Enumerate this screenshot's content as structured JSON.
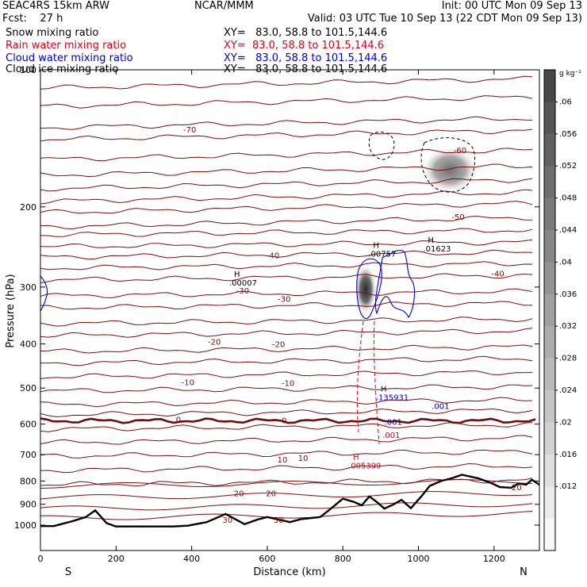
{
  "header": {
    "line1_left": "SEAC4RS 15km ARW",
    "line1_center": "NCAR/MMM",
    "line1_right": "Init: 00 UTC Mon 09 Sep 13",
    "line2_left": "Fcst:    27 h",
    "line2_right": "Valid: 03 UTC Tue 10 Sep 13 (22 CDT Mon 09 Sep 13)",
    "fields": [
      {
        "name": "Snow mixing ratio",
        "xy": "XY=   83.0, 58.8 to 101.5,144.6",
        "color": "#000000"
      },
      {
        "name": "Rain water mixing ratio",
        "xy": "XY=  83.0, 58.8 to 101.5,144.6",
        "color": "#e0001b"
      },
      {
        "name": "Cloud water mixing ratio",
        "xy": "XY=   83.0, 58.8 to 101.5,144.6",
        "color": "#0000cc"
      },
      {
        "name": "Cloud ice mixing ratio",
        "xy": "XY=   83.0, 58.8 to 101.5,144.6",
        "color": "#000000"
      }
    ]
  },
  "chart_data": {
    "type": "cross-section contour",
    "xlabel": "Distance (km)",
    "ylabel": "Pressure (hPa)",
    "xlim": [
      0,
      1320
    ],
    "ylim": [
      1050,
      100
    ],
    "y_scale": "log-pressure",
    "x_ticks": [
      0,
      200,
      400,
      600,
      800,
      1000,
      1200
    ],
    "y_ticks": [
      100,
      200,
      300,
      400,
      500,
      600,
      700,
      800,
      900,
      1000
    ],
    "x_end_labels": {
      "left": "S",
      "right": "N"
    },
    "temperature_contours_c": [
      {
        "label": "-70",
        "label_x": 395,
        "label_p": 135
      },
      {
        "label": "-60",
        "label_x": 1110,
        "label_p": 150
      },
      {
        "label": "-50",
        "label_x": 1105,
        "label_p": 210
      },
      {
        "label": "-40",
        "label_x": 615,
        "label_p": 255
      },
      {
        "label": "-40",
        "label_x": 1210,
        "label_p": 280
      },
      {
        "label": "-30",
        "label_x": 535,
        "label_p": 305
      },
      {
        "label": "-30",
        "label_x": 645,
        "label_p": 318
      },
      {
        "label": "-20",
        "label_x": 460,
        "label_p": 395
      },
      {
        "label": "-20",
        "label_x": 630,
        "label_p": 400
      },
      {
        "label": "-10",
        "label_x": 390,
        "label_p": 485
      },
      {
        "label": "-10",
        "label_x": 655,
        "label_p": 487
      },
      {
        "label": "0",
        "label_x": 365,
        "label_p": 585
      },
      {
        "label": "0",
        "label_x": 645,
        "label_p": 588
      },
      {
        "label": "10",
        "label_x": 640,
        "label_p": 717
      },
      {
        "label": "10",
        "label_x": 695,
        "label_p": 711
      },
      {
        "label": "20",
        "label_x": 525,
        "label_p": 850
      },
      {
        "label": "20",
        "label_x": 610,
        "label_p": 850
      },
      {
        "label": "20",
        "label_x": 1260,
        "label_p": 825
      },
      {
        "label": "30",
        "label_x": 495,
        "label_p": 972
      },
      {
        "label": "30",
        "label_x": 630,
        "label_p": 972
      }
    ],
    "maxima_labels": [
      {
        "text": "H",
        "value": ".00007",
        "x": 512,
        "p": 285,
        "color": "#000000"
      },
      {
        "text": "H",
        "value": ".00757",
        "x": 880,
        "p": 246,
        "color": "#000000"
      },
      {
        "text": "H",
        "value": ".01623",
        "x": 1025,
        "p": 240,
        "color": "#000000"
      },
      {
        "text": "H",
        "value": ".135931",
        "x": 900,
        "p": 509,
        "color": "#0000cc"
      },
      {
        "text": "H",
        "value": ".005399",
        "x": 827,
        "p": 718,
        "color": "#e0001b"
      }
    ],
    "contour_value_labels": [
      {
        "text": ".001",
        "x": 1035,
        "p": 547,
        "color": "#0000cc"
      },
      {
        "text": ".001",
        "x": 910,
        "p": 592,
        "color": "#0000cc"
      },
      {
        "text": ".001",
        "x": 905,
        "p": 633,
        "color": "#e0001b"
      }
    ],
    "terrain_pressure_hpa": [
      [
        0,
        1005
      ],
      [
        35,
        1005
      ],
      [
        85,
        980
      ],
      [
        120,
        960
      ],
      [
        145,
        928
      ],
      [
        175,
        990
      ],
      [
        200,
        1007
      ],
      [
        350,
        1007
      ],
      [
        390,
        1003
      ],
      [
        440,
        985
      ],
      [
        490,
        945
      ],
      [
        540,
        995
      ],
      [
        575,
        972
      ],
      [
        600,
        960
      ],
      [
        660,
        985
      ],
      [
        690,
        970
      ],
      [
        740,
        960
      ],
      [
        765,
        925
      ],
      [
        800,
        875
      ],
      [
        830,
        890
      ],
      [
        850,
        905
      ],
      [
        870,
        865
      ],
      [
        890,
        890
      ],
      [
        910,
        920
      ],
      [
        935,
        900
      ],
      [
        955,
        880
      ],
      [
        980,
        918
      ],
      [
        1010,
        860
      ],
      [
        1030,
        820
      ],
      [
        1060,
        800
      ],
      [
        1090,
        788
      ],
      [
        1115,
        775
      ],
      [
        1160,
        790
      ],
      [
        1195,
        810
      ],
      [
        1215,
        825
      ],
      [
        1245,
        828
      ],
      [
        1265,
        810
      ],
      [
        1285,
        815
      ],
      [
        1300,
        795
      ],
      [
        1320,
        815
      ]
    ],
    "colorbar": {
      "unit": "g kg⁻¹",
      "levels": [
        0.012,
        0.016,
        0.02,
        0.024,
        0.028,
        0.032,
        0.036,
        0.04,
        0.044,
        0.048,
        0.052,
        0.056,
        0.06
      ],
      "tick_labels": [
        ".012",
        ".016",
        ".02",
        ".024",
        ".028",
        ".032",
        ".036",
        ".04",
        ".044",
        ".048",
        ".052",
        ".056",
        ".06"
      ]
    },
    "colors": {
      "temperature": "#7a1010",
      "rain": "#e0001b",
      "cloud_water": "#0000cc",
      "terrain": "#000000"
    }
  }
}
